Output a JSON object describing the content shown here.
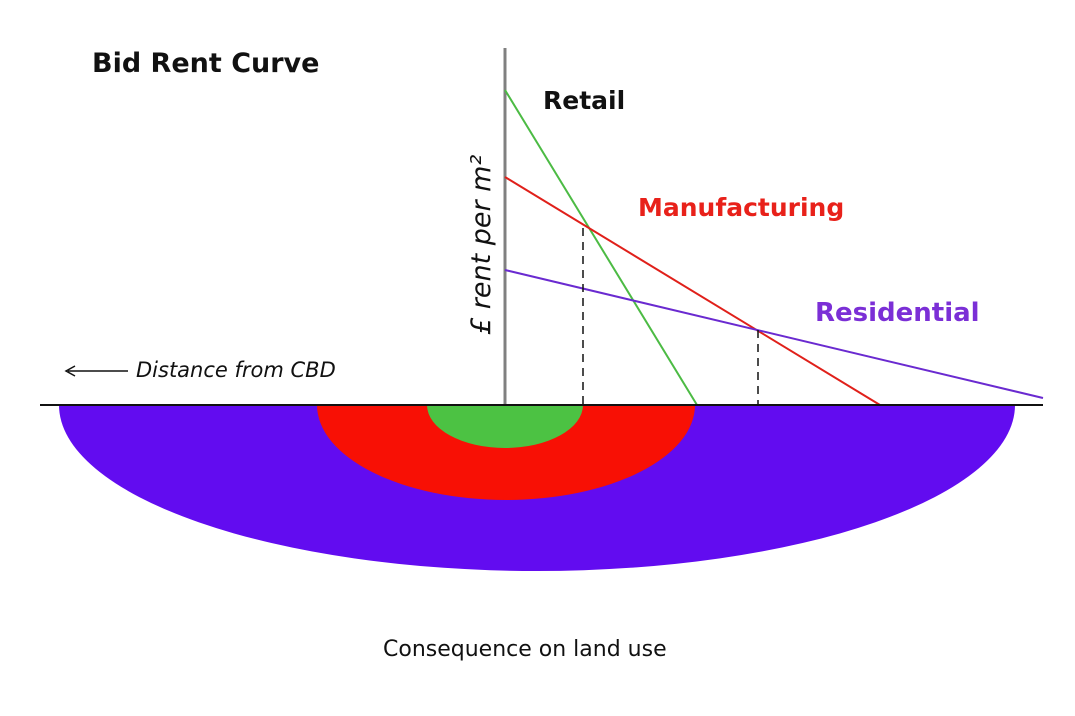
{
  "title": "Bid Rent Curve",
  "y_axis_label": "£ rent per m²",
  "x_axis_label": "Distance from CBD",
  "caption": "Consequence on land use",
  "series": [
    {
      "name": "Retail",
      "color": "#4cbb44",
      "label_color": "#111111",
      "zone_color": "#4cc243"
    },
    {
      "name": "Manufacturing",
      "color": "#e0201a",
      "label_color": "#e8211a",
      "zone_color": "#f81005"
    },
    {
      "name": "Residential",
      "color": "#6a2ad0",
      "label_color": "#7b2fd6",
      "zone_color": "#620cf0"
    }
  ]
}
